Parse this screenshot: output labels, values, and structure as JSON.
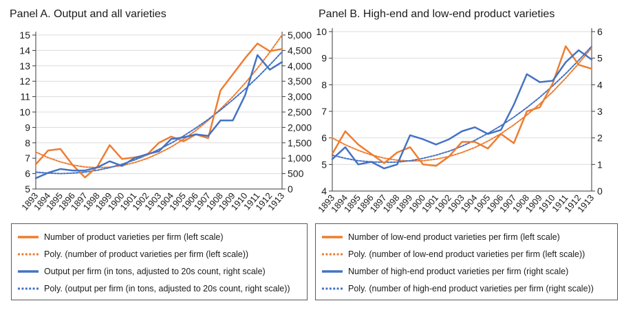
{
  "colors": {
    "orange": "#ED7D31",
    "blue": "#4472C4",
    "gridline": "#DCDCDC",
    "axis": "#3a3a3a"
  },
  "chart_data": {
    "type": "line",
    "x_labels": [
      "1893",
      "1894",
      "1895",
      "1896",
      "1897",
      "1898",
      "1899",
      "1900",
      "1901",
      "1902",
      "1903",
      "1904",
      "1905",
      "1906",
      "1907",
      "1908",
      "1909",
      "1910",
      "1911",
      "1912",
      "1913"
    ],
    "panels": [
      {
        "title": "Panel A. Output and all varieties",
        "left_axis": {
          "min": 5,
          "max": 15,
          "step": 1,
          "labels": [
            "5",
            "6",
            "7",
            "8",
            "9",
            "10",
            "11",
            "12",
            "13",
            "14",
            "15"
          ]
        },
        "right_axis": {
          "min": 0,
          "max": 5000,
          "step": 500,
          "labels": [
            "0",
            "500",
            "1,000",
            "1,500",
            "2,000",
            "2,500",
            "3,000",
            "3,500",
            "4,000",
            "4,500",
            "5,000"
          ]
        },
        "series": [
          {
            "name": "product-varieties-per-firm",
            "label": "Number of product varieties per firm (left scale)",
            "color": "#ED7D31",
            "style": "solid",
            "axis": "left",
            "values": [
              6.6,
              7.5,
              7.6,
              6.55,
              5.75,
              6.45,
              7.85,
              6.95,
              7.05,
              7.2,
              8.0,
              8.4,
              8.1,
              8.55,
              8.3,
              11.4,
              12.45,
              13.5,
              14.45,
              13.95,
              14.1
            ]
          },
          {
            "name": "poly-product-varieties",
            "label": "Poly. (number of product varieties per firm (left scale))",
            "color": "#ED7D31",
            "style": "dotted",
            "axis": "left",
            "values": [
              7.4,
              7.04,
              6.76,
              6.56,
              6.43,
              6.39,
              6.42,
              6.52,
              6.71,
              6.97,
              7.32,
              7.73,
              8.23,
              8.8,
              9.46,
              10.19,
              10.99,
              11.88,
              12.84,
              13.88,
              15.0
            ]
          },
          {
            "name": "output-per-firm",
            "label": "Output per firm (in tons, adjusted to 20s count, right scale)",
            "color": "#4472C4",
            "style": "solid",
            "axis": "right",
            "values": [
              350,
              525,
              650,
              600,
              600,
              700,
              900,
              750,
              1000,
              1125,
              1225,
              1625,
              1675,
              1775,
              1725,
              2225,
              2225,
              3050,
              4350,
              3875,
              4125
            ]
          },
          {
            "name": "poly-output-per-firm",
            "label": "Poly. (output per firm (in tons, adjusted to 20s count, right scale))",
            "color": "#4472C4",
            "style": "dotted",
            "axis": "right",
            "values": [
              550,
              515,
              500,
              515,
              550,
              610,
              695,
              805,
              940,
              1100,
              1285,
              1490,
              1720,
              1980,
              2260,
              2565,
              2895,
              3245,
              3625,
              4030,
              4455
            ]
          }
        ]
      },
      {
        "title": "Panel B. High-end and low-end product varieties",
        "left_axis": {
          "min": 4,
          "max": 10,
          "step": 1,
          "labels": [
            "4",
            "5",
            "6",
            "7",
            "8",
            "9",
            "10"
          ]
        },
        "right_axis": {
          "min": 0,
          "max": 6,
          "step": 1,
          "labels": [
            "0",
            "1",
            "2",
            "3",
            "4",
            "5",
            "6"
          ]
        },
        "series": [
          {
            "name": "low-end-varieties-per-firm",
            "label": "Number of low-end product varieties per firm (left scale)",
            "color": "#ED7D31",
            "style": "solid",
            "axis": "left",
            "values": [
              5.4,
              6.25,
              5.75,
              5.4,
              5.05,
              5.45,
              5.65,
              5.0,
              4.95,
              5.3,
              5.85,
              5.85,
              5.6,
              6.15,
              5.8,
              7.0,
              7.15,
              8.05,
              9.45,
              8.75,
              8.6
            ]
          },
          {
            "name": "poly-low-end-varieties",
            "label": "Poly. (number of low-end product varieties per firm (left scale))",
            "color": "#ED7D31",
            "style": "dotted",
            "axis": "left",
            "values": [
              6.0,
              5.74,
              5.53,
              5.36,
              5.24,
              5.16,
              5.13,
              5.14,
              5.2,
              5.3,
              5.45,
              5.64,
              5.88,
              6.16,
              6.49,
              6.86,
              7.28,
              7.74,
              8.25,
              8.8,
              9.4
            ]
          },
          {
            "name": "high-end-varieties-per-firm",
            "label": "Number of high-end product varieties per firm (right scale)",
            "color": "#4472C4",
            "style": "solid",
            "axis": "right",
            "values": [
              1.2,
              1.65,
              1.0,
              1.1,
              0.85,
              1.0,
              2.1,
              1.95,
              1.75,
              1.95,
              2.25,
              2.4,
              2.15,
              2.3,
              3.25,
              4.4,
              4.1,
              4.15,
              4.85,
              5.3,
              4.95
            ]
          },
          {
            "name": "poly-high-end-varieties",
            "label": "Poly. (number of high-end product varieties per firm (right scale))",
            "color": "#4472C4",
            "style": "dotted",
            "axis": "right",
            "values": [
              1.35,
              1.23,
              1.14,
              1.1,
              1.08,
              1.09,
              1.14,
              1.23,
              1.35,
              1.5,
              1.69,
              1.91,
              2.17,
              2.46,
              2.78,
              3.14,
              3.53,
              3.96,
              4.42,
              4.92,
              5.45
            ]
          }
        ]
      }
    ]
  }
}
